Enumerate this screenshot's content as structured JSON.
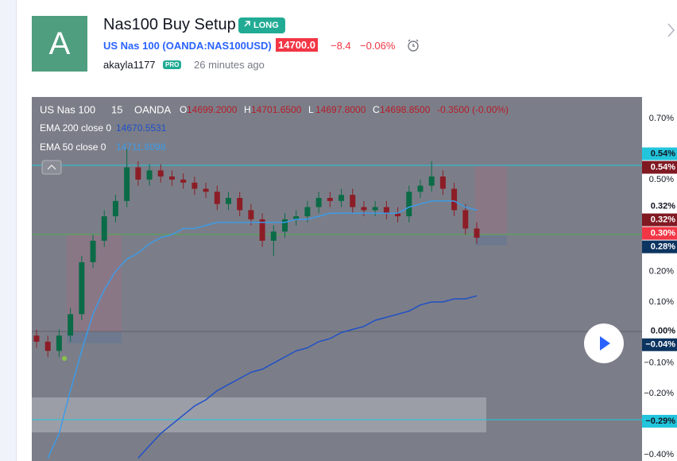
{
  "header": {
    "avatar": "A",
    "title": "Nas100 Buy Setup",
    "direction": "LONG",
    "symbol": "US Nas 100 (OANDA:NAS100USD)",
    "price": "14700.0",
    "change": "−8.4",
    "change_pct": "−0.06%",
    "author": "akayla1177",
    "badge": "PRO",
    "time": "26 minutes ago"
  },
  "chart_data": {
    "type": "candlestick",
    "symbol": "US Nas 100",
    "interval": "15",
    "exchange": "OANDA",
    "ohlc": [
      {
        "key": "O",
        "value": "14699.2000"
      },
      {
        "key": "H",
        "value": "14701.6500"
      },
      {
        "key": "L",
        "value": "14697.8000"
      },
      {
        "key": "C",
        "value": "14698.8500"
      }
    ],
    "change": "-0.3500 (-0.00%)",
    "candles": {
      "up_color": "#0b6b47",
      "down_color": "#8c1d26",
      "open": [
        -0.01,
        -0.03,
        -0.06,
        -0.01,
        0.06,
        0.23,
        0.3,
        0.38,
        0.43,
        0.54,
        0.5,
        0.53,
        0.51,
        0.5,
        0.49,
        0.47,
        0.46,
        0.42,
        0.44,
        0.4,
        0.37,
        0.3,
        0.33,
        0.37,
        0.38,
        0.41,
        0.44,
        0.43,
        0.45,
        0.41,
        0.4,
        0.41,
        0.39,
        0.38,
        0.46,
        0.48,
        0.51,
        0.47,
        0.4,
        0.34
      ],
      "high": [
        0.01,
        -0.01,
        0.01,
        0.08,
        0.25,
        0.32,
        0.4,
        0.45,
        0.6,
        0.56,
        0.55,
        0.55,
        0.53,
        0.52,
        0.51,
        0.49,
        0.48,
        0.46,
        0.46,
        0.42,
        0.39,
        0.35,
        0.39,
        0.4,
        0.43,
        0.46,
        0.46,
        0.47,
        0.47,
        0.43,
        0.43,
        0.43,
        0.41,
        0.48,
        0.5,
        0.56,
        0.53,
        0.49,
        0.42,
        0.36
      ],
      "low": [
        -0.05,
        -0.08,
        -0.08,
        -0.03,
        0.04,
        0.21,
        0.28,
        0.36,
        0.41,
        0.48,
        0.48,
        0.49,
        0.48,
        0.47,
        0.45,
        0.44,
        0.4,
        0.4,
        0.38,
        0.35,
        0.28,
        0.25,
        0.31,
        0.35,
        0.36,
        0.39,
        0.41,
        0.41,
        0.39,
        0.38,
        0.38,
        0.37,
        0.36,
        0.36,
        0.44,
        0.46,
        0.45,
        0.38,
        0.32,
        0.29
      ],
      "close": [
        -0.03,
        -0.06,
        -0.01,
        0.06,
        0.23,
        0.3,
        0.38,
        0.43,
        0.54,
        0.5,
        0.53,
        0.51,
        0.5,
        0.49,
        0.47,
        0.46,
        0.42,
        0.44,
        0.4,
        0.37,
        0.3,
        0.33,
        0.37,
        0.38,
        0.41,
        0.44,
        0.43,
        0.45,
        0.41,
        0.4,
        0.41,
        0.39,
        0.38,
        0.46,
        0.48,
        0.51,
        0.47,
        0.4,
        0.34,
        0.31
      ]
    },
    "series": [
      {
        "name": "EMA 200 close 0",
        "last": "14670.5531",
        "color": "#1f4fc8",
        "values": [
          null,
          null,
          null,
          null,
          null,
          null,
          null,
          null,
          null,
          -0.41,
          -0.37,
          -0.33,
          -0.3,
          -0.27,
          -0.24,
          -0.22,
          -0.19,
          -0.17,
          -0.15,
          -0.13,
          -0.12,
          -0.1,
          -0.08,
          -0.06,
          -0.05,
          -0.03,
          -0.02,
          0.0,
          0.01,
          0.02,
          0.04,
          0.05,
          0.06,
          0.07,
          0.09,
          0.1,
          0.1,
          0.11,
          0.11,
          0.12
        ]
      },
      {
        "name": "EMA 50 close 0",
        "last": "14711.6098",
        "color": "#3d9be9",
        "values": [
          null,
          -0.41,
          -0.33,
          -0.19,
          -0.06,
          0.06,
          0.14,
          0.2,
          0.24,
          0.26,
          0.29,
          0.31,
          0.32,
          0.34,
          0.34,
          0.35,
          0.36,
          0.36,
          0.36,
          0.36,
          0.36,
          0.36,
          0.36,
          0.37,
          0.37,
          0.38,
          0.39,
          0.39,
          0.39,
          0.39,
          0.39,
          0.39,
          0.39,
          0.41,
          0.42,
          0.43,
          0.43,
          0.43,
          0.41,
          0.4
        ]
      }
    ],
    "ylim": [
      -0.42,
      0.77
    ],
    "yticks": [
      {
        "value": 0.7,
        "label": "0.70%"
      },
      {
        "value": 0.5,
        "label": "0.50%"
      },
      {
        "value": 0.2,
        "label": "0.20%"
      },
      {
        "value": 0.1,
        "label": "0.10%"
      },
      {
        "value": -0.1,
        "label": "−0.10%"
      },
      {
        "value": -0.2,
        "label": "−0.20%"
      },
      {
        "value": -0.4,
        "label": "−0.40%"
      }
    ],
    "price_labels": [
      {
        "value": 0.54,
        "label": "0.54%",
        "color": "#22c5dc"
      },
      {
        "value": 0.54,
        "label": "0.54%",
        "color": "#801922"
      },
      {
        "value": 0.32,
        "label": "0.32%",
        "color": "#ffffff"
      },
      {
        "value": 0.32,
        "label": "0.32%",
        "color": "#801922"
      },
      {
        "value": 0.3,
        "label": "0.30%",
        "color": "#f23645"
      },
      {
        "value": 0.28,
        "label": "0.28%",
        "color": "#0c3460"
      },
      {
        "value": 0.0,
        "label": "0.00%",
        "color": "#ffffff"
      },
      {
        "value": -0.04,
        "label": "−0.04%",
        "color": "#0c3460"
      },
      {
        "value": -0.29,
        "label": "−0.29%",
        "color": "#22c5dc"
      }
    ]
  }
}
